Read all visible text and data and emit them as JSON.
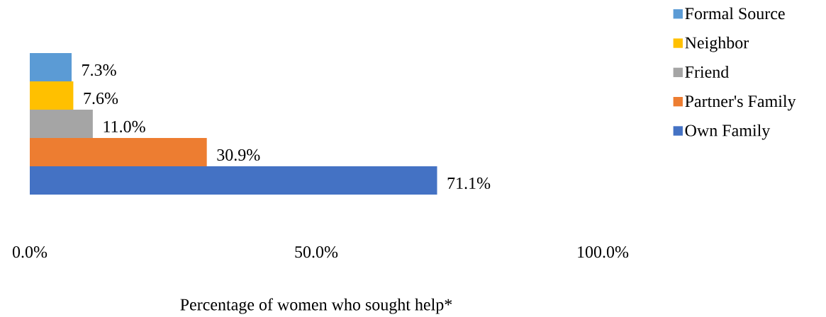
{
  "chart_data": {
    "type": "bar",
    "orientation": "horizontal",
    "xlabel": "Percentage of women who sought help*",
    "categories": [
      null
    ],
    "series": [
      {
        "name": "Formal Source",
        "color": "#5b9bd5",
        "values": [
          7.3
        ],
        "value_labels": [
          "7.3%"
        ]
      },
      {
        "name": "Neighbor",
        "color": "#ffc000",
        "values": [
          7.6
        ],
        "value_labels": [
          "7.6%"
        ]
      },
      {
        "name": "Friend",
        "color": "#a5a5a5",
        "values": [
          11.0
        ],
        "value_labels": [
          "11.0%"
        ]
      },
      {
        "name": "Partner's Family",
        "color": "#ed7d31",
        "values": [
          30.9
        ],
        "value_labels": [
          "30.9%"
        ]
      },
      {
        "name": "Own Family",
        "color": "#4472c4",
        "values": [
          71.1
        ],
        "value_labels": [
          "71.1%"
        ]
      }
    ],
    "xlim": [
      0,
      100
    ],
    "xticks": [
      {
        "value": 0,
        "label": "0.0%"
      },
      {
        "value": 50,
        "label": "50.0%"
      },
      {
        "value": 100,
        "label": "100.0%"
      }
    ],
    "legend": "right",
    "grid": false
  }
}
